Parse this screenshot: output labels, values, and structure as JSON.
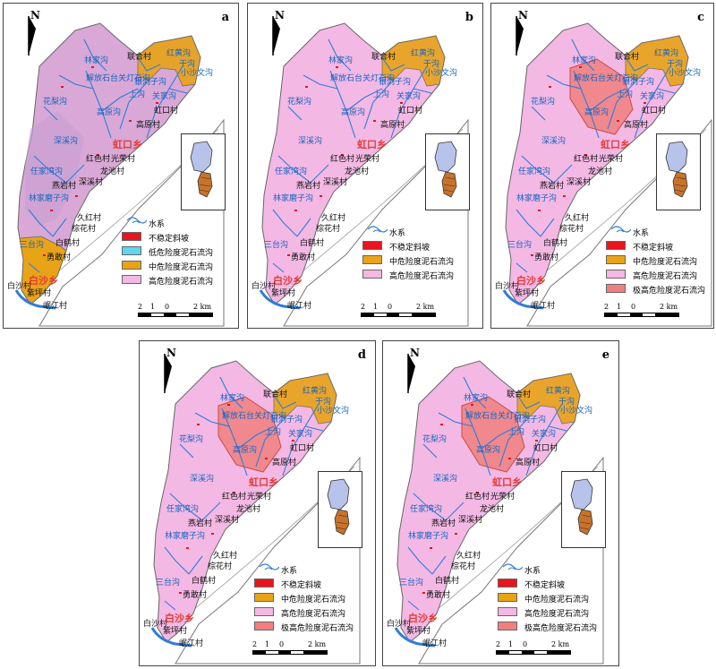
{
  "panels": [
    {
      "id": "a",
      "letter": "a",
      "zones": [
        "low",
        "mid",
        "high"
      ],
      "legend": [
        {
          "key": "water",
          "label": "水系"
        },
        {
          "key": "unstable",
          "label": "不稳定斜坡"
        },
        {
          "key": "low",
          "label": "低危险度泥石流沟"
        },
        {
          "key": "mid",
          "label": "中危险度泥石流沟"
        },
        {
          "key": "high",
          "label": "高危险度泥石流沟"
        }
      ]
    },
    {
      "id": "b",
      "letter": "b",
      "zones": [
        "mid",
        "high"
      ],
      "legend": [
        {
          "key": "water",
          "label": "水系"
        },
        {
          "key": "unstable",
          "label": "不稳定斜坡"
        },
        {
          "key": "mid",
          "label": "中危险度泥石流沟"
        },
        {
          "key": "high",
          "label": "高危险度泥石流沟"
        }
      ]
    },
    {
      "id": "c",
      "letter": "c",
      "zones": [
        "mid",
        "high",
        "veryhigh"
      ],
      "legend": [
        {
          "key": "water",
          "label": "水系"
        },
        {
          "key": "unstable",
          "label": "不稳定斜坡"
        },
        {
          "key": "mid",
          "label": "中危险度泥石流沟"
        },
        {
          "key": "high",
          "label": "高危险度泥石流沟"
        },
        {
          "key": "veryhigh",
          "label": "极高危险度泥石流沟"
        }
      ]
    },
    {
      "id": "d",
      "letter": "d",
      "zones": [
        "mid",
        "high",
        "veryhigh"
      ],
      "legend": [
        {
          "key": "water",
          "label": "水系"
        },
        {
          "key": "unstable",
          "label": "不稳定斜坡"
        },
        {
          "key": "mid",
          "label": "中危险度泥石流沟"
        },
        {
          "key": "high",
          "label": "高危险度泥石流沟"
        },
        {
          "key": "veryhigh",
          "label": "极高危险度泥石流沟"
        }
      ]
    },
    {
      "id": "e",
      "letter": "e",
      "zones": [
        "mid",
        "high",
        "veryhigh"
      ],
      "legend": [
        {
          "key": "water",
          "label": "水系"
        },
        {
          "key": "unstable",
          "label": "不稳定斜坡"
        },
        {
          "key": "mid",
          "label": "中危险度泥石流沟"
        },
        {
          "key": "high",
          "label": "高危险度泥石流沟"
        },
        {
          "key": "veryhigh",
          "label": "极高危险度泥石流沟"
        }
      ]
    }
  ],
  "north_label": "N",
  "colors": {
    "water": "#2e7dd7",
    "unstable": "#e8141e",
    "low": "#5fd6f0",
    "mid": "#e8a317",
    "high": "#f4b8e4",
    "veryhigh": "#f08080",
    "region": "#d9a8d6",
    "boundary": "#888888"
  },
  "scale": {
    "ticks": [
      "2",
      "1",
      "0",
      "2 km"
    ]
  },
  "towns": {
    "hongkou": "虹口乡",
    "baisha": "白沙乡"
  },
  "villages": {
    "lianhe": "联合村",
    "hongkou": "虹口村",
    "gaoyuan": "高原村",
    "guangrong": "光荣村",
    "longchi": "龙池村",
    "hongse": "红色村",
    "shenxi": "深溪村",
    "yanyan": "燕岩村",
    "jiuhong": "久红村",
    "zonghua": "棕花村",
    "baihe": "白鹤村",
    "yonggan": "勇敢村",
    "baisha": "白沙村",
    "ziping": "紫坪村",
    "minjiang": "岷江村"
  },
  "gullies": {
    "g1": "红黄沟",
    "g2": "干沟",
    "g3": "小沙文沟",
    "g4": "解放石台关灯石沟",
    "g5": "银洞子沟",
    "g6": "林家沟",
    "g7": "上沟",
    "g8": "关家沟",
    "g9": "花梨沟",
    "g10": "深溪沟",
    "g11": "任家湾沟",
    "g12": "林家磨子沟",
    "g13": "三台沟",
    "g14": "高原沟"
  }
}
